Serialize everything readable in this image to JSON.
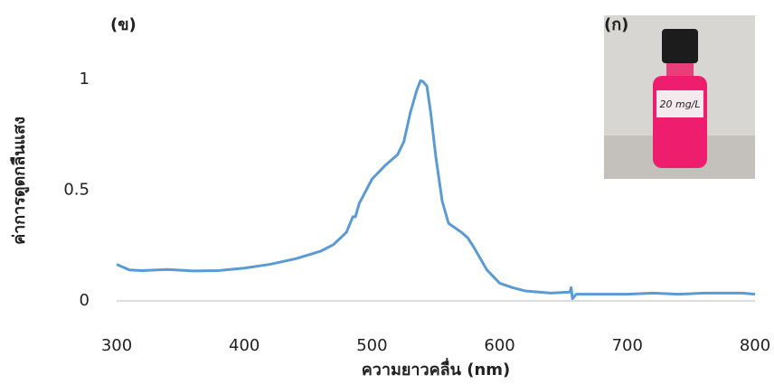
{
  "chart_data": {
    "type": "line",
    "panel_label": "(ข)",
    "inset_label": "(ก)",
    "inset_annotation": "20 mg/L",
    "x_label": "ความยาวคลื่น (nm)",
    "y_label": "ค่าการดูดกลืนแสง",
    "x": [
      300,
      310,
      320,
      340,
      360,
      380,
      400,
      420,
      440,
      460,
      470,
      480,
      485,
      487,
      490,
      500,
      510,
      520,
      525,
      530,
      535,
      538,
      540,
      543,
      546,
      550,
      555,
      560,
      565,
      570,
      575,
      580,
      585,
      590,
      600,
      610,
      620,
      640,
      655,
      656,
      657,
      660,
      680,
      700,
      720,
      740,
      760,
      780,
      790,
      800
    ],
    "series": [
      {
        "color": "#5b9bd5",
        "values": [
          0.165,
          0.14,
          0.137,
          0.142,
          0.135,
          0.137,
          0.148,
          0.165,
          0.19,
          0.225,
          0.255,
          0.31,
          0.38,
          0.38,
          0.44,
          0.55,
          0.61,
          0.66,
          0.72,
          0.85,
          0.95,
          0.995,
          0.99,
          0.97,
          0.85,
          0.65,
          0.45,
          0.35,
          0.33,
          0.31,
          0.285,
          0.24,
          0.19,
          0.14,
          0.08,
          0.06,
          0.045,
          0.035,
          0.04,
          0.06,
          0.01,
          0.03,
          0.03,
          0.03,
          0.035,
          0.03,
          0.035,
          0.035,
          0.035,
          0.03
        ]
      }
    ],
    "xlim": [
      300,
      800
    ],
    "ylim": [
      0,
      1.1
    ],
    "xticks": [
      300,
      400,
      500,
      600,
      700,
      800
    ],
    "yticks": [
      0,
      0.5,
      1
    ],
    "grid": false
  }
}
